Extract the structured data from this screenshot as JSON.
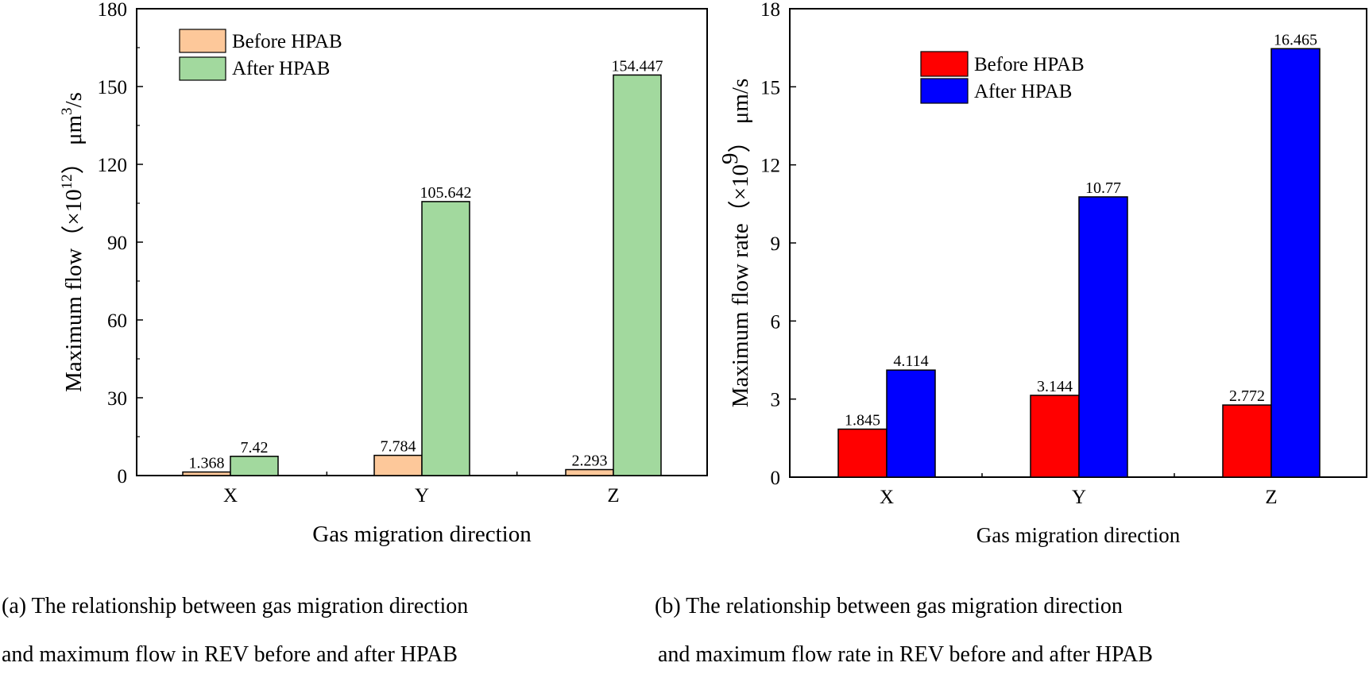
{
  "chart_data": [
    {
      "type": "bar",
      "panel": "a",
      "categories": [
        "X",
        "Y",
        "Z"
      ],
      "series": [
        {
          "name": "Before HPAB",
          "values": [
            1.368,
            7.784,
            2.293
          ],
          "color": "#fdc89a"
        },
        {
          "name": "After HPAB",
          "values": [
            7.42,
            105.642,
            154.447
          ],
          "color": "#a2d99e"
        }
      ],
      "value_labels": [
        [
          "1.368",
          "7.784",
          "2.293"
        ],
        [
          "7.42",
          "105.642",
          "154.447"
        ]
      ],
      "yticks": [
        "0",
        "30",
        "60",
        "90",
        "120",
        "150",
        "180"
      ],
      "ylim": [
        0,
        180
      ],
      "ylabel_main": "Maximum flow（×10",
      "ylabel_exp": "12",
      "ylabel_tail": "） μm",
      "ylabel_exp2": "3",
      "ylabel_end": "/s",
      "xlabel": "Gas migration direction",
      "legend_position": "top-left",
      "grid": false
    },
    {
      "type": "bar",
      "panel": "b",
      "categories": [
        "X",
        "Y",
        "Z"
      ],
      "series": [
        {
          "name": "Before HPAB",
          "values": [
            1.845,
            3.144,
            2.772
          ],
          "color": "#ff0000"
        },
        {
          "name": "After HPAB",
          "values": [
            4.114,
            10.77,
            16.465
          ],
          "color": "#0000ff"
        }
      ],
      "value_labels": [
        [
          "1.845",
          "3.144",
          "2.772"
        ],
        [
          "4.114",
          "10.77",
          "16.465"
        ]
      ],
      "yticks": [
        "0",
        "3",
        "6",
        "9",
        "12",
        "15",
        "18"
      ],
      "ylim": [
        0,
        18
      ],
      "ylabel_main": "Maximum flow rate（×10",
      "ylabel_exp": "9",
      "ylabel_tail": "） μm/s",
      "xlabel": "Gas migration direction",
      "legend_position": "top-center",
      "grid": false
    }
  ],
  "captions": {
    "a_line1": "(a) The relationship between gas migration direction",
    "a_line2": "and maximum flow in REV before and after HPAB",
    "b_line1": "(b) The relationship between gas migration direction",
    "b_line2": "and maximum flow rate in REV before and after HPAB"
  }
}
